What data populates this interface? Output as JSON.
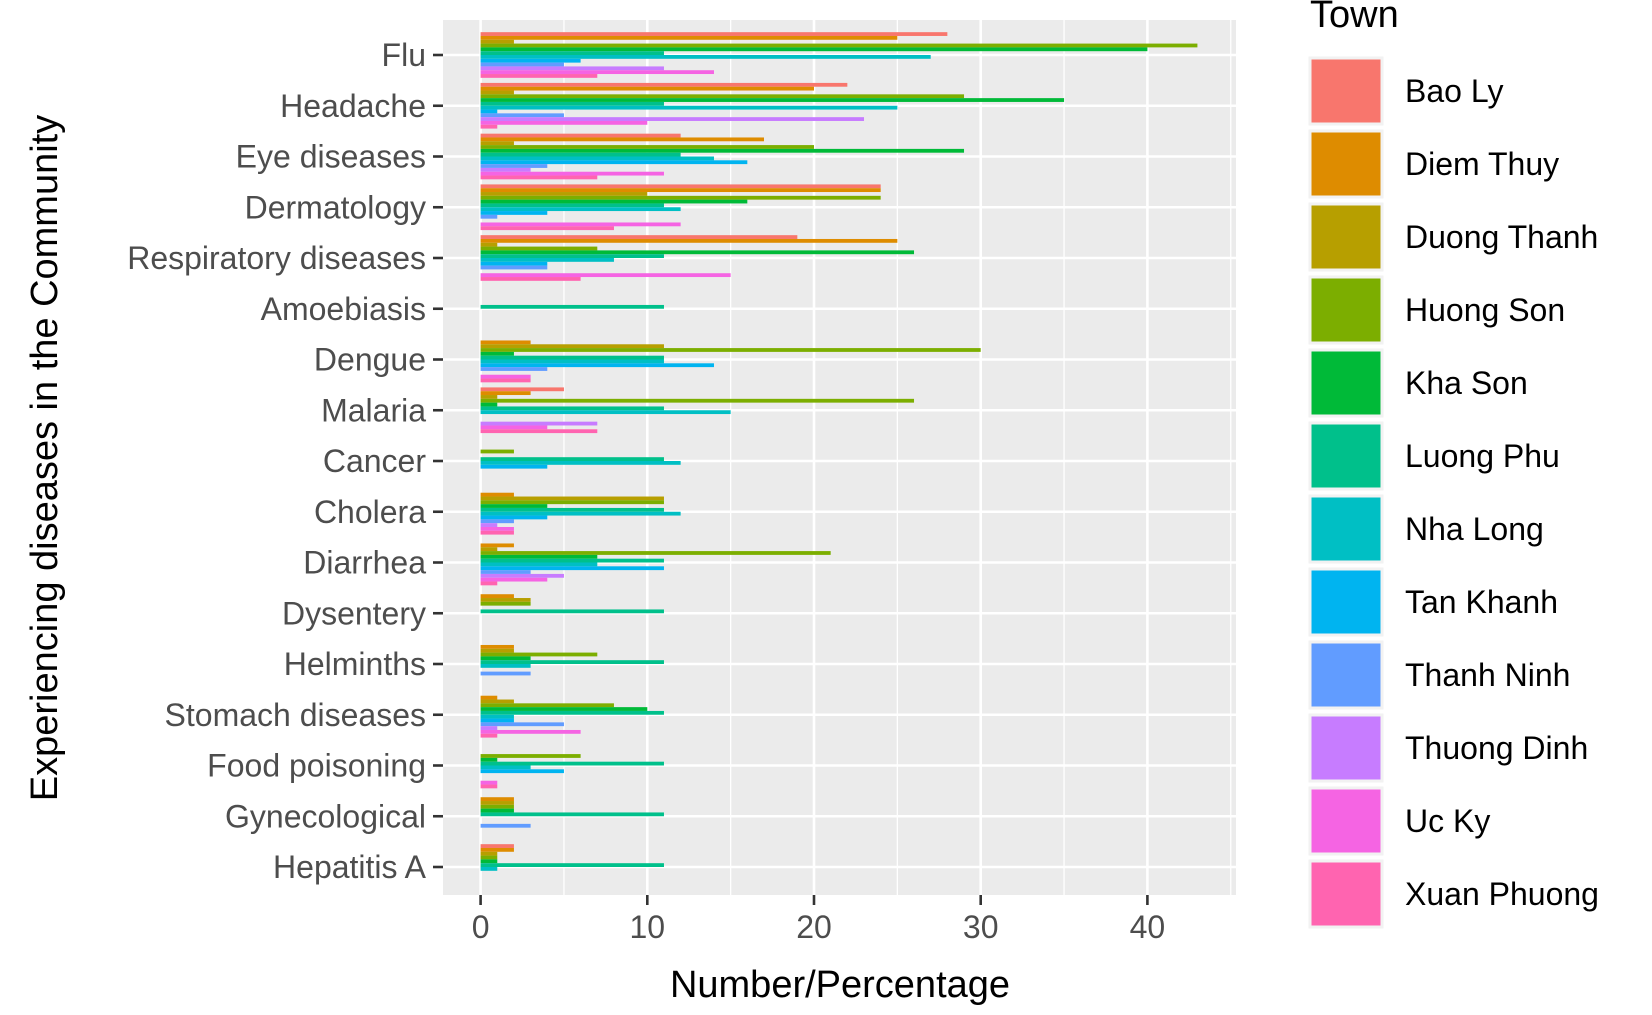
{
  "chart_data": {
    "type": "bar",
    "orientation": "horizontal",
    "xlabel": "Number/Percentage",
    "ylabel": "Experiencing diseases in the Community",
    "xlim": [
      -2.3,
      45.2
    ],
    "xticks": [
      0,
      10,
      20,
      30,
      40
    ],
    "grid": true,
    "legend_title": "Town",
    "legend_position": "right",
    "categories": [
      "Flu",
      "Headache",
      "Eye diseases",
      "Dermatology",
      "Respiratory diseases",
      "Amoebiasis",
      "Dengue",
      "Malaria",
      "Cancer",
      "Cholera",
      "Diarrhea",
      "Dysentery",
      "Helminths",
      "Stomach diseases",
      "Food poisoning",
      "Gynecological",
      "Hepatitis A"
    ],
    "series": [
      {
        "name": "Bao Ly",
        "color": "#F8766D",
        "values": [
          28,
          22,
          12,
          24,
          19,
          null,
          null,
          5,
          null,
          null,
          null,
          null,
          null,
          null,
          null,
          null,
          2
        ]
      },
      {
        "name": "Diem Thuy",
        "color": "#DE8C00",
        "values": [
          25,
          20,
          17,
          24,
          25,
          null,
          3,
          3,
          null,
          2,
          2,
          2,
          2,
          1,
          null,
          2,
          2
        ]
      },
      {
        "name": "Duong Thanh",
        "color": "#B79F00",
        "values": [
          2,
          2,
          2,
          10,
          1,
          null,
          11,
          1,
          null,
          11,
          1,
          3,
          2,
          2,
          null,
          2,
          1
        ]
      },
      {
        "name": "Huong Son",
        "color": "#7CAE00",
        "values": [
          43,
          29,
          20,
          24,
          7,
          null,
          30,
          26,
          2,
          11,
          21,
          3,
          7,
          8,
          6,
          2,
          1
        ]
      },
      {
        "name": "Kha Son",
        "color": "#00BA38",
        "values": [
          40,
          35,
          29,
          16,
          26,
          null,
          2,
          1,
          null,
          4,
          7,
          null,
          3,
          10,
          1,
          2,
          1
        ]
      },
      {
        "name": "Luong Phu",
        "color": "#00C08B",
        "values": [
          11,
          11,
          12,
          11,
          11,
          11,
          11,
          11,
          11,
          11,
          11,
          11,
          11,
          11,
          11,
          11,
          11
        ]
      },
      {
        "name": "Nha Long",
        "color": "#00BFC4",
        "values": [
          27,
          25,
          14,
          12,
          8,
          null,
          11,
          15,
          12,
          12,
          7,
          null,
          3,
          2,
          3,
          null,
          1
        ]
      },
      {
        "name": "Tan Khanh",
        "color": "#00B4F0",
        "values": [
          6,
          1,
          16,
          4,
          4,
          null,
          14,
          null,
          4,
          4,
          11,
          null,
          null,
          2,
          5,
          null,
          null
        ]
      },
      {
        "name": "Thanh Ninh",
        "color": "#619CFF",
        "values": [
          5,
          5,
          4,
          1,
          4,
          null,
          4,
          null,
          null,
          2,
          3,
          null,
          3,
          5,
          null,
          3,
          null
        ]
      },
      {
        "name": "Thuong Dinh",
        "color": "#C77CFF",
        "values": [
          11,
          23,
          3,
          null,
          null,
          null,
          null,
          7,
          null,
          1,
          5,
          null,
          null,
          1,
          null,
          null,
          null
        ]
      },
      {
        "name": "Uc Ky",
        "color": "#F564E3",
        "values": [
          14,
          10,
          11,
          12,
          15,
          null,
          3,
          4,
          null,
          2,
          4,
          null,
          null,
          6,
          1,
          null,
          null
        ]
      },
      {
        "name": "Xuan Phuong",
        "color": "#FF64B0",
        "values": [
          7,
          1,
          7,
          8,
          6,
          null,
          3,
          7,
          null,
          2,
          1,
          null,
          null,
          1,
          1,
          null,
          null
        ]
      }
    ]
  }
}
